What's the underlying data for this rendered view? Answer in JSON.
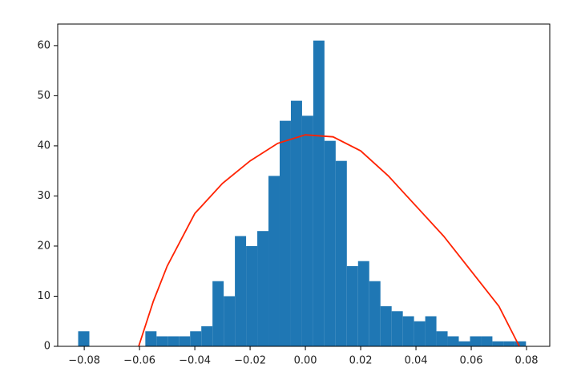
{
  "chart_data": {
    "type": "histogram",
    "bins": [
      -0.0822,
      -0.07815,
      -0.0741,
      -0.07005,
      -0.066,
      -0.06195,
      -0.0579,
      -0.05385,
      -0.0498,
      -0.04575,
      -0.0417,
      -0.03765,
      -0.0336,
      -0.02955,
      -0.0255,
      -0.02145,
      -0.0174,
      -0.01335,
      -0.0093,
      -0.00525,
      -0.0012,
      0.00285,
      0.0069,
      0.01095,
      0.015,
      0.01905,
      0.0231,
      0.02715,
      0.0312,
      0.03525,
      0.0393,
      0.04335,
      0.0474,
      0.05145,
      0.0555,
      0.05955,
      0.0636,
      0.06765,
      0.0717,
      0.07575,
      0.0798
    ],
    "values": [
      3,
      0,
      0,
      0,
      0,
      0,
      3,
      2,
      2,
      2,
      3,
      4,
      13,
      10,
      22,
      20,
      23,
      34,
      45,
      49,
      46,
      61,
      41,
      37,
      16,
      17,
      13,
      8,
      7,
      6,
      5,
      6,
      3,
      2,
      1,
      2,
      2,
      1,
      1,
      1
    ],
    "color": "#1f77b4",
    "curve": {
      "x": [
        -0.0603,
        -0.055,
        -0.05,
        -0.04,
        -0.03,
        -0.02,
        -0.01,
        0.0,
        0.01,
        0.02,
        0.03,
        0.04,
        0.05,
        0.06,
        0.07,
        0.0774
      ],
      "values": [
        0,
        9,
        16,
        26.5,
        32.5,
        37,
        40.5,
        42.2,
        41.8,
        39,
        34,
        28,
        22,
        15,
        8,
        0
      ],
      "color": "#ff2200"
    },
    "xlim": [
      -0.0896,
      0.0884
    ],
    "ylim": [
      0,
      64.3
    ],
    "xticks": [
      {
        "value": -0.08,
        "label": "−0.08"
      },
      {
        "value": -0.06,
        "label": "−0.06"
      },
      {
        "value": -0.04,
        "label": "−0.04"
      },
      {
        "value": -0.02,
        "label": "−0.02"
      },
      {
        "value": 0.0,
        "label": "0.00"
      },
      {
        "value": 0.02,
        "label": "0.02"
      },
      {
        "value": 0.04,
        "label": "0.04"
      },
      {
        "value": 0.06,
        "label": "0.06"
      },
      {
        "value": 0.08,
        "label": "0.08"
      }
    ],
    "yticks": [
      0,
      10,
      20,
      30,
      40,
      50,
      60
    ]
  }
}
